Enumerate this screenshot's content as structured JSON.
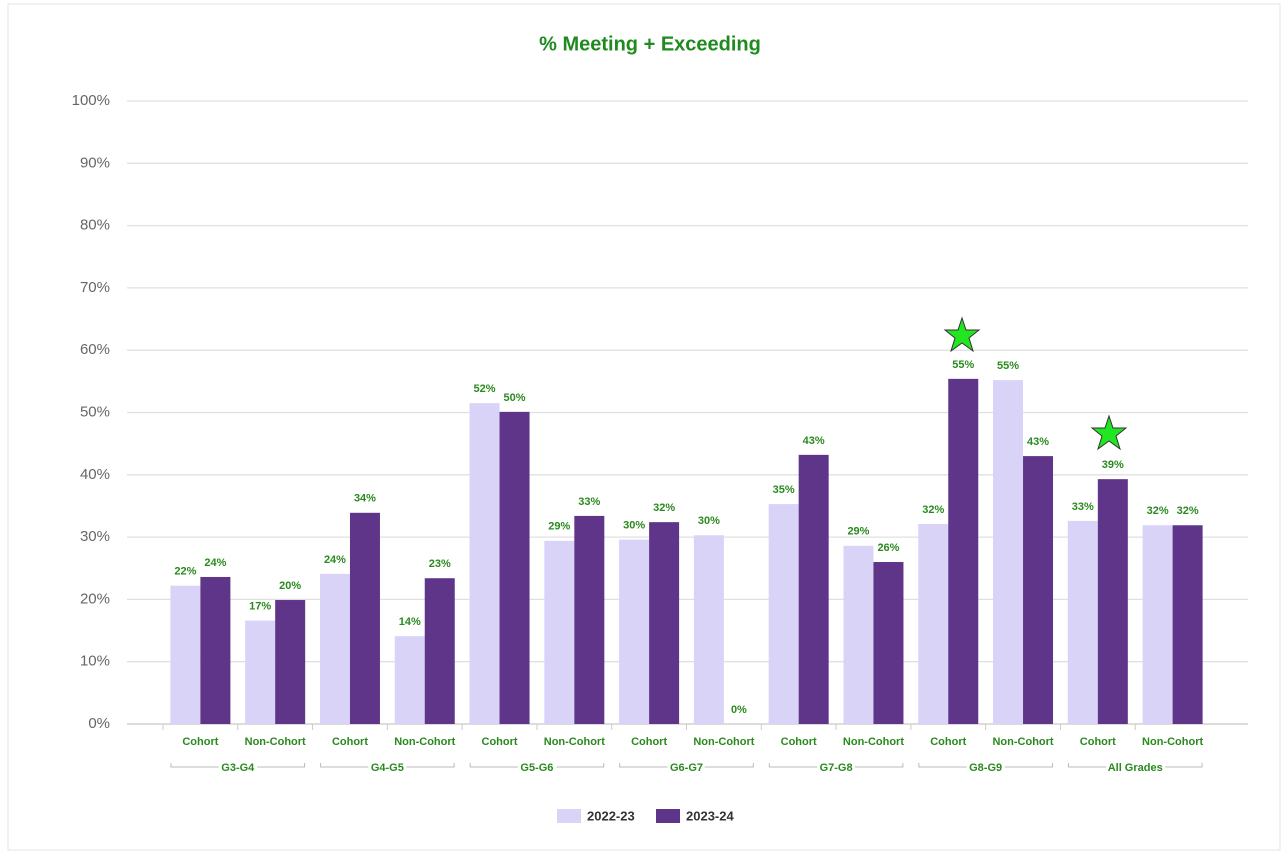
{
  "chart_data": {
    "type": "bar",
    "title": "% Meeting + Exceeding",
    "categories": [
      "Cohort",
      "Non-Cohort",
      "Cohort",
      "Non-Cohort",
      "Cohort",
      "Non-Cohort",
      "Cohort",
      "Non-Cohort",
      "Cohort",
      "Non-Cohort",
      "Cohort",
      "Non-Cohort",
      "Cohort",
      "Non-Cohort"
    ],
    "groups": [
      "G3-G4",
      "G4-G5",
      "G5-G6",
      "G6-G7",
      "G7-G8",
      "G8-G9",
      "All Grades"
    ],
    "series": [
      {
        "name": "2022-23",
        "color": "#d9d3f8",
        "values": [
          22.2,
          16.6,
          24.1,
          14.1,
          51.5,
          29.4,
          29.6,
          30.3,
          35.3,
          28.6,
          32.1,
          55.2,
          32.6,
          31.9
        ],
        "value_labels": [
          "22%",
          "17%",
          "24%",
          "14%",
          "52%",
          "29%",
          "30%",
          "30%",
          "35%",
          "29%",
          "32%",
          "55%",
          "33%",
          "32%"
        ]
      },
      {
        "name": "2023-24",
        "color": "#5f3589",
        "values": [
          23.6,
          19.9,
          33.9,
          23.4,
          50.1,
          33.4,
          32.4,
          0,
          43.2,
          26.0,
          55.4,
          43.0,
          39.3,
          31.9
        ],
        "value_labels": [
          "24%",
          "20%",
          "34%",
          "23%",
          "50%",
          "33%",
          "32%",
          "0%",
          "43%",
          "26%",
          "55%",
          "43%",
          "39%",
          "32%"
        ]
      }
    ],
    "ylim": [
      0,
      100
    ],
    "yticks": [
      {
        "value": 0,
        "label": "0%"
      },
      {
        "value": 10,
        "label": "10%"
      },
      {
        "value": 20,
        "label": "20%"
      },
      {
        "value": 30,
        "label": "30%"
      },
      {
        "value": 40,
        "label": "40%"
      },
      {
        "value": 50,
        "label": "50%"
      },
      {
        "value": 60,
        "label": "60%"
      },
      {
        "value": 70,
        "label": "70%"
      },
      {
        "value": 80,
        "label": "80%"
      },
      {
        "value": 90,
        "label": "90%"
      },
      {
        "value": 100,
        "label": "100%"
      }
    ],
    "grid": true,
    "legend": "bottom"
  }
}
